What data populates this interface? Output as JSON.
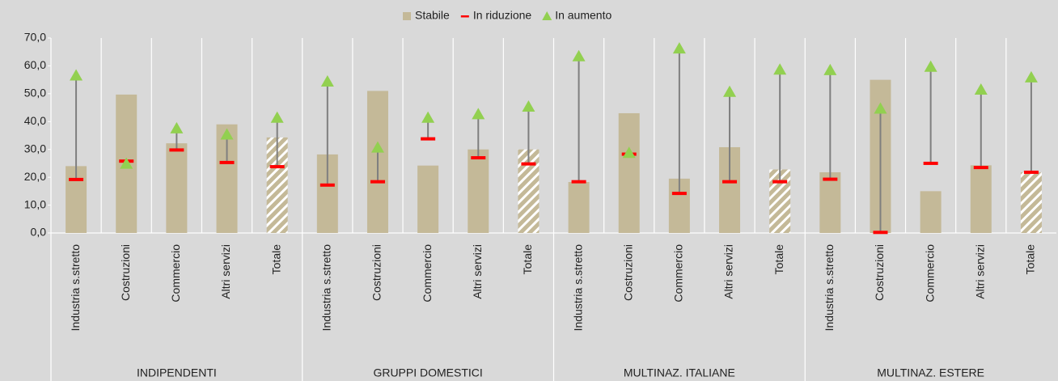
{
  "chart_data": {
    "type": "bar",
    "categories": [
      "Industria s.stretto",
      "Costruzioni",
      "Commercio",
      "Altri servizi",
      "Totale",
      "Industria s.stretto",
      "Costruzioni",
      "Commercio",
      "Altri servizi",
      "Totale",
      "Industria s.stretto",
      "Costruzioni",
      "Commercio",
      "Altri servizi",
      "Totale",
      "Industria s.stretto",
      "Costruzioni",
      "Commercio",
      "Altri servizi",
      "Totale"
    ],
    "groups": [
      "INDIPENDENTI",
      "GRUPPI DOMESTICI",
      "MULTINAZ. ITALIANE",
      "MULTINAZ. ESTERE"
    ],
    "hatched_category": "Totale",
    "series": [
      {
        "name": "Stabile",
        "color": "#c4b998",
        "values": [
          24,
          49.7,
          32.2,
          39,
          34.3,
          28.2,
          51,
          24.2,
          30,
          30,
          18.3,
          43,
          19.5,
          30.8,
          22.8,
          21.8,
          55,
          15,
          24.3,
          21.8
        ]
      },
      {
        "name": "In riduzione",
        "color": "#ff0000",
        "values": [
          19.2,
          25.8,
          29.8,
          25.3,
          23.8,
          17.2,
          18.4,
          33.8,
          27,
          24.8,
          18.4,
          28.3,
          14.2,
          18.4,
          18.4,
          19.3,
          0.2,
          25,
          23.5,
          21.8
        ]
      },
      {
        "name": "In aumento",
        "color": "#92d050",
        "values": [
          56.5,
          24.8,
          37.5,
          35.3,
          41.3,
          54.3,
          30.6,
          41.3,
          42.6,
          45.3,
          63.4,
          28.7,
          66.2,
          50.6,
          58.6,
          58.4,
          44.6,
          59.6,
          51.4,
          55.8
        ]
      }
    ],
    "range_line_color": "#7f7f7f",
    "ylim": [
      0,
      70
    ],
    "yticks": [
      {
        "value": 0,
        "label": "0,0"
      },
      {
        "value": 10,
        "label": "10,0"
      },
      {
        "value": 20,
        "label": "20,0"
      },
      {
        "value": 30,
        "label": "30,0"
      },
      {
        "value": 40,
        "label": "40,0"
      },
      {
        "value": 50,
        "label": "50,0"
      },
      {
        "value": 60,
        "label": "60,0"
      },
      {
        "value": 70,
        "label": "70,0"
      }
    ]
  }
}
